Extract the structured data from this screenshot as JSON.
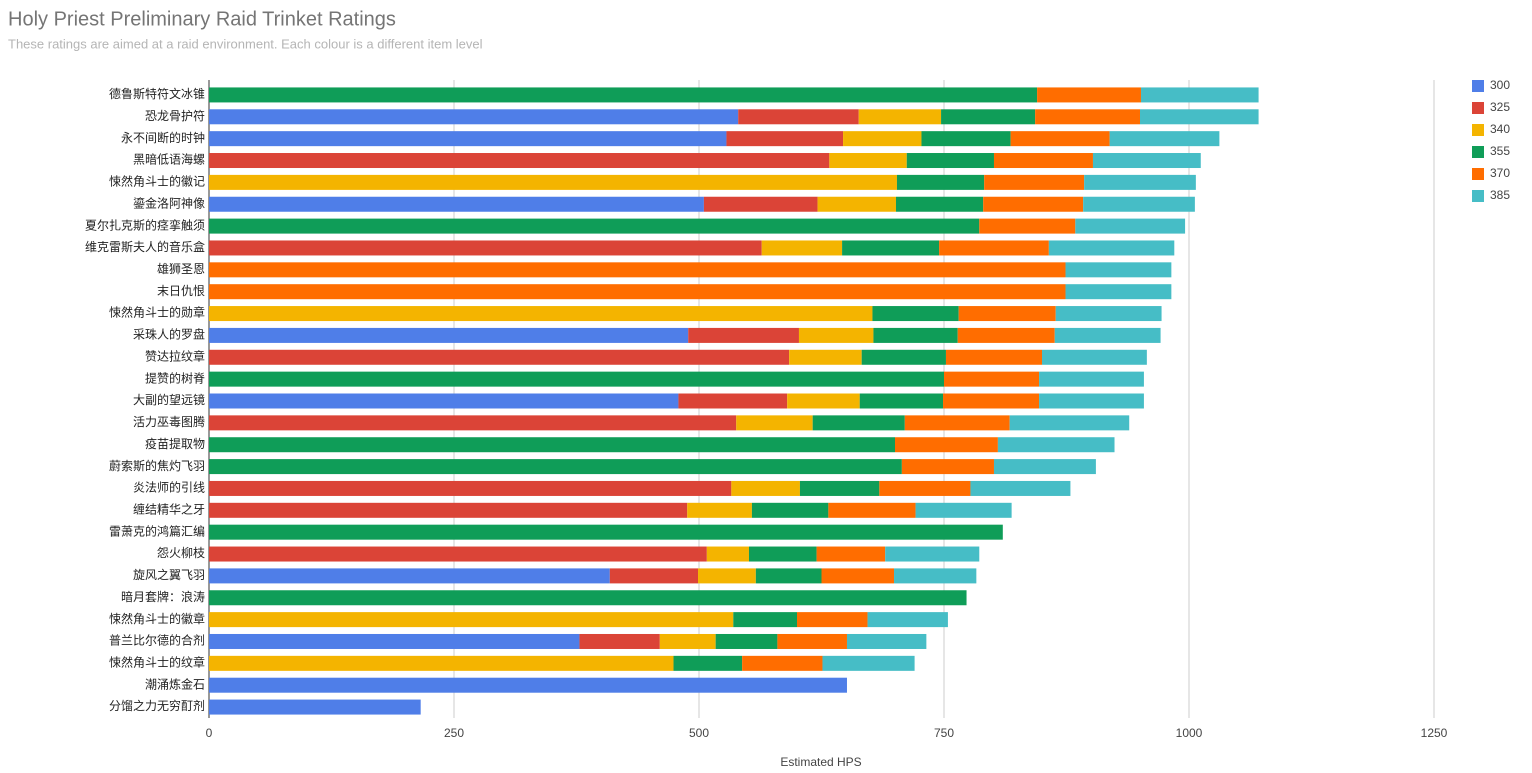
{
  "chart_data": {
    "type": "stacked_bar_horizontal",
    "title": "Holy Priest Preliminary Raid Trinket Ratings",
    "subtitle": "These ratings are aimed at a raid environment. Each colour is a different item level",
    "x_label": "Estimated HPS",
    "categories": [
      "德鲁斯特符文冰锥",
      "恐龙骨护符",
      "永不间断的时钟",
      "黑暗低语海螺",
      "悚然角斗士的徽记",
      "鎏金洛阿神像",
      "夏尔扎克斯的痉挛触须",
      "维克雷斯夫人的音乐盒",
      "雄狮圣恩",
      "末日仇恨",
      "悚然角斗士的勋章",
      "采珠人的罗盘",
      "赞达拉纹章",
      "提赞的树脊",
      "大副的望远镜",
      "活力巫毒图腾",
      "疫苗提取物",
      "蔚索斯的焦灼飞羽",
      "炎法师的引线",
      "缠结精华之牙",
      "雷萧克的鸿篇汇编",
      "怨火柳枝",
      "旋风之翼飞羽",
      "暗月套牌：浪涛",
      "悚然角斗士的徽章",
      "普兰比尔德的合剂",
      "悚然角斗士的纹章",
      "潮涌炼金石",
      "分馏之力无穷酊剂"
    ],
    "series": [
      {
        "name": "300",
        "color": "#4f7ee8",
        "values": [
          null,
          540,
          528,
          null,
          null,
          505,
          null,
          null,
          null,
          null,
          null,
          489,
          null,
          null,
          479,
          null,
          null,
          null,
          null,
          null,
          null,
          null,
          409,
          null,
          null,
          378,
          null,
          651,
          216
        ]
      },
      {
        "name": "325",
        "color": "#db4437",
        "values": [
          null,
          123,
          119,
          633,
          null,
          116,
          null,
          564,
          null,
          null,
          null,
          113,
          592,
          null,
          111,
          538,
          null,
          null,
          533,
          488,
          null,
          508,
          90,
          null,
          null,
          82,
          null,
          null,
          null
        ]
      },
      {
        "name": "340",
        "color": "#f4b400",
        "values": [
          null,
          84,
          80,
          79,
          702,
          80,
          null,
          82,
          null,
          null,
          677,
          76,
          74,
          null,
          74,
          78,
          null,
          null,
          70,
          66,
          null,
          43,
          59,
          null,
          535,
          57,
          474,
          null,
          null
        ]
      },
      {
        "name": "355",
        "color": "#0f9d58",
        "values": [
          845,
          96,
          91,
          89,
          89,
          89,
          786,
          99,
          null,
          null,
          88,
          86,
          86,
          750,
          85,
          94,
          700,
          707,
          81,
          78,
          810,
          69,
          67,
          773,
          65,
          63,
          70,
          null,
          null
        ]
      },
      {
        "name": "370",
        "color": "#ff6d00",
        "values": [
          106,
          107,
          101,
          101,
          102,
          102,
          98,
          112,
          874,
          874,
          99,
          99,
          98,
          97,
          98,
          107,
          105,
          94,
          93,
          89,
          null,
          70,
          74,
          null,
          72,
          71,
          82,
          null,
          null
        ]
      },
      {
        "name": "385",
        "color": "#46bdc6",
        "values": [
          120,
          121,
          112,
          110,
          114,
          114,
          112,
          128,
          108,
          108,
          108,
          108,
          107,
          107,
          107,
          122,
          119,
          104,
          102,
          98,
          null,
          96,
          84,
          null,
          82,
          81,
          94,
          null,
          null
        ]
      }
    ],
    "xlim": [
      0,
      1250
    ],
    "xticks": [
      0,
      250,
      500,
      750,
      1000,
      1250
    ],
    "grid": true,
    "legend": "right"
  }
}
